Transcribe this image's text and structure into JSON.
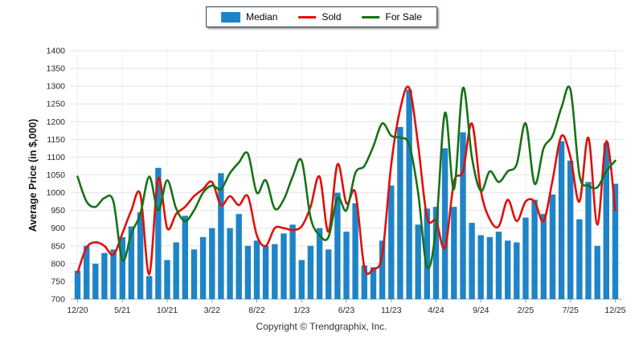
{
  "legend": {
    "items": [
      {
        "label": "Median",
        "swatch": "bar-swatch"
      },
      {
        "label": "Sold",
        "swatch": "line-swatch"
      },
      {
        "label": "For Sale",
        "swatch": "line-swatch"
      }
    ]
  },
  "footer": {
    "copyright": "Copyright © Trendgraphix, Inc."
  },
  "chart_data": {
    "type": "bar",
    "title": "",
    "ylabel": "Average Price (in $,000)",
    "xlabel": "",
    "ylim": [
      700,
      1400
    ],
    "ytick_step": 50,
    "xtick_every": 5,
    "grid": true,
    "legend_position": "top-center",
    "categories": [
      "12/20",
      "1/21",
      "2/21",
      "3/21",
      "4/21",
      "5/21",
      "6/21",
      "7/21",
      "8/21",
      "9/21",
      "10/21",
      "11/21",
      "12/21",
      "1/22",
      "2/22",
      "3/22",
      "4/22",
      "5/22",
      "6/22",
      "7/22",
      "8/22",
      "9/22",
      "10/22",
      "11/22",
      "12/22",
      "1/23",
      "2/23",
      "3/23",
      "4/23",
      "5/23",
      "6/23",
      "7/23",
      "8/23",
      "9/23",
      "10/23",
      "11/23",
      "12/23",
      "1/24",
      "2/24",
      "3/24",
      "4/24",
      "5/24",
      "6/24",
      "7/24",
      "8/24",
      "9/24",
      "10/24",
      "11/24",
      "12/24",
      "1/25",
      "2/25",
      "3/25",
      "4/25",
      "5/25",
      "6/25",
      "7/25",
      "8/25",
      "9/25",
      "10/25",
      "11/25",
      "12/25"
    ],
    "series": [
      {
        "name": "Median",
        "type": "bar",
        "color": "#1f84c7",
        "values": [
          780,
          850,
          800,
          830,
          840,
          875,
          905,
          945,
          765,
          1070,
          810,
          860,
          935,
          840,
          875,
          900,
          1055,
          900,
          940,
          850,
          865,
          850,
          855,
          885,
          910,
          810,
          850,
          900,
          840,
          1000,
          890,
          970,
          795,
          790,
          865,
          1020,
          1185,
          1290,
          910,
          955,
          960,
          1125,
          960,
          1170,
          915,
          880,
          875,
          890,
          865,
          860,
          930,
          980,
          940,
          995,
          1145,
          1090,
          925,
          1030,
          850,
          1140,
          1025
        ]
      },
      {
        "name": "Sold",
        "type": "line",
        "color": "#e01008",
        "values": [
          775,
          845,
          860,
          850,
          825,
          885,
          950,
          995,
          770,
          1040,
          900,
          940,
          960,
          990,
          1010,
          1030,
          965,
          990,
          965,
          990,
          880,
          850,
          900,
          900,
          895,
          905,
          960,
          1045,
          890,
          1080,
          970,
          1000,
          790,
          785,
          825,
          1080,
          1235,
          1295,
          1135,
          930,
          920,
          845,
          1030,
          1060,
          1195,
          1005,
          925,
          905,
          980,
          920,
          975,
          975,
          920,
          1035,
          1160,
          1100,
          975,
          1155,
          910,
          1145,
          950
        ]
      },
      {
        "name": "For Sale",
        "type": "line",
        "color": "#167316",
        "values": [
          1045,
          975,
          960,
          985,
          975,
          810,
          885,
          940,
          1045,
          950,
          1035,
          955,
          920,
          950,
          1000,
          1020,
          1010,
          1055,
          1085,
          1110,
          1000,
          1035,
          955,
          980,
          1045,
          1090,
          930,
          880,
          875,
          985,
          950,
          1055,
          1075,
          1130,
          1195,
          1160,
          1155,
          1135,
          1000,
          790,
          900,
          1225,
          1010,
          1295,
          1100,
          1005,
          1060,
          1030,
          1060,
          1080,
          1195,
          1025,
          1125,
          1160,
          1240,
          1290,
          1050,
          1020,
          1015,
          1060,
          1090
        ]
      }
    ]
  }
}
